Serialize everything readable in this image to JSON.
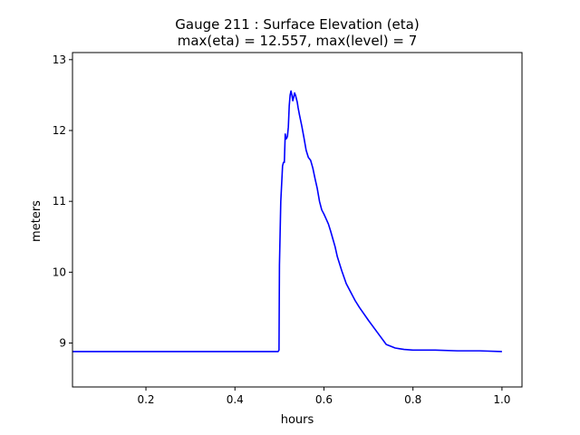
{
  "chart_data": {
    "type": "line",
    "title": "Gauge 211 : Surface Elevation (eta)",
    "subtitle": "max(eta) =  12.557,    max(level) = 7",
    "xlabel": "hours",
    "ylabel": "meters",
    "xlim": [
      0.035,
      1.045
    ],
    "ylim": [
      8.38,
      13.1
    ],
    "xticks": [
      0.2,
      0.4,
      0.6,
      0.8,
      1.0
    ],
    "xtick_labels": [
      "0.2",
      "0.4",
      "0.6",
      "0.8",
      "1.0"
    ],
    "yticks": [
      9,
      10,
      11,
      12,
      13
    ],
    "ytick_labels": [
      "9",
      "10",
      "11",
      "12",
      "13"
    ],
    "grid": false,
    "series": [
      {
        "name": "eta",
        "color": "#0000ff",
        "x": [
          0.035,
          0.1,
          0.2,
          0.3,
          0.4,
          0.497,
          0.499,
          0.5,
          0.503,
          0.507,
          0.509,
          0.511,
          0.513,
          0.515,
          0.517,
          0.518,
          0.52,
          0.522,
          0.524,
          0.526,
          0.528,
          0.53,
          0.532,
          0.534,
          0.536,
          0.538,
          0.54,
          0.542,
          0.545,
          0.55,
          0.555,
          0.56,
          0.565,
          0.57,
          0.575,
          0.58,
          0.585,
          0.59,
          0.595,
          0.6,
          0.605,
          0.61,
          0.615,
          0.62,
          0.625,
          0.63,
          0.64,
          0.65,
          0.66,
          0.67,
          0.68,
          0.7,
          0.72,
          0.74,
          0.76,
          0.77,
          0.78,
          0.8,
          0.85,
          0.9,
          0.95,
          1.0
        ],
        "y": [
          8.88,
          8.88,
          8.88,
          8.88,
          8.88,
          8.88,
          8.9,
          10.1,
          11.0,
          11.5,
          11.55,
          11.55,
          11.95,
          11.88,
          11.9,
          11.92,
          12.05,
          12.35,
          12.5,
          12.557,
          12.5,
          12.42,
          12.47,
          12.53,
          12.5,
          12.45,
          12.4,
          12.32,
          12.22,
          12.07,
          11.9,
          11.72,
          11.62,
          11.58,
          11.47,
          11.32,
          11.18,
          11.0,
          10.88,
          10.82,
          10.75,
          10.68,
          10.58,
          10.47,
          10.36,
          10.22,
          10.02,
          9.84,
          9.72,
          9.6,
          9.5,
          9.32,
          9.15,
          8.98,
          8.93,
          8.92,
          8.91,
          8.9,
          8.9,
          8.89,
          8.89,
          8.88
        ]
      }
    ]
  }
}
